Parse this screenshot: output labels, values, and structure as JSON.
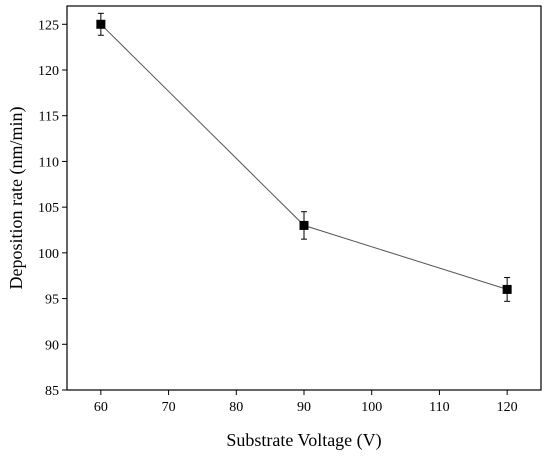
{
  "chart_data": {
    "type": "line",
    "title": "",
    "xlabel": "Substrate Voltage (V)",
    "ylabel": "Deposition rate (nm/min)",
    "xlim": [
      55,
      125
    ],
    "ylim": [
      85,
      127
    ],
    "xticks": [
      60,
      70,
      80,
      90,
      100,
      110,
      120
    ],
    "yticks": [
      85,
      90,
      95,
      100,
      105,
      110,
      115,
      120,
      125
    ],
    "xtick_labels": [
      "60",
      "70",
      "80",
      "90",
      "100",
      "110",
      "120"
    ],
    "ytick_labels": [
      "85",
      "90",
      "95",
      "100",
      "105",
      "110",
      "115",
      "120",
      "125"
    ],
    "grid": false,
    "legend": "none",
    "series": [
      {
        "x": [
          60,
          90,
          120
        ],
        "y": [
          125,
          103,
          96
        ],
        "error": [
          1.2,
          1.5,
          1.3
        ],
        "marker": "square",
        "color": "#000000",
        "line_color": "#555555"
      }
    ]
  }
}
